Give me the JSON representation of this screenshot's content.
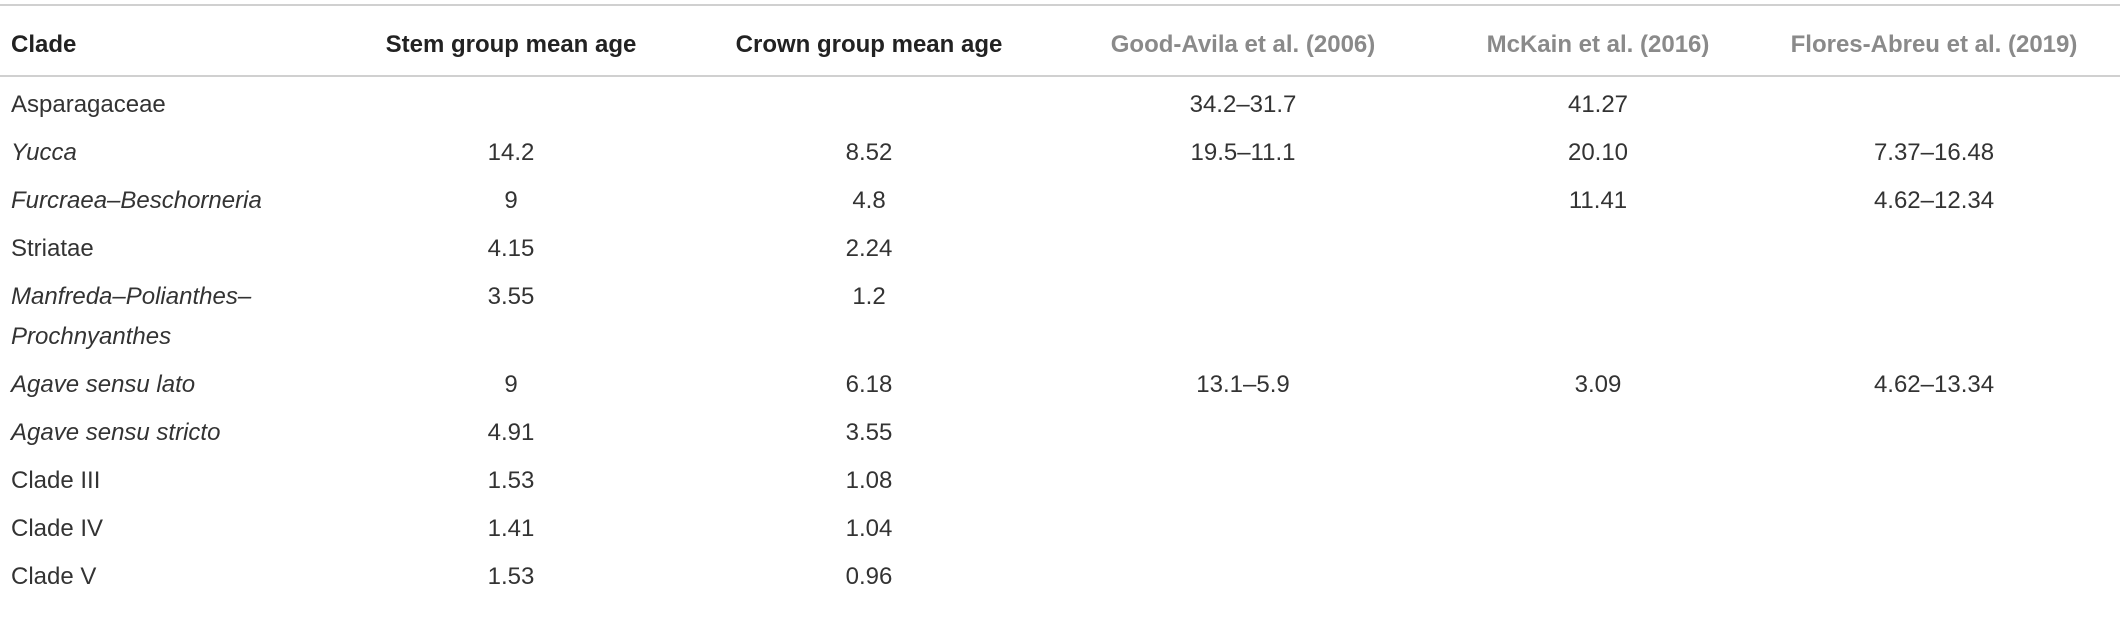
{
  "table": {
    "columns": [
      "Clade",
      "Stem group mean age",
      "Crown group mean age",
      "Good-Avila et al. (2006)",
      "McKain et al. (2016)",
      "Flores-Abreu et al. (2019)"
    ],
    "rows": [
      {
        "cells": [
          "Asparagaceae",
          null,
          null,
          "34.2–31.7",
          "41.27",
          null
        ],
        "italic": false
      },
      {
        "cells": [
          "Yucca",
          "14.2",
          "8.52",
          "19.5–11.1",
          "20.10",
          "7.37–16.48"
        ],
        "italic": true
      },
      {
        "cells": [
          "Furcraea–Beschorneria",
          "9",
          "4.8",
          null,
          "11.41",
          "4.62–12.34"
        ],
        "italic": true
      },
      {
        "cells": [
          "Striatae",
          "4.15",
          "2.24",
          null,
          null,
          null
        ],
        "italic": false
      },
      {
        "cells": [
          "Manfreda–Polianthes–Prochnyanthes",
          "3.55",
          "1.2",
          null,
          null,
          null
        ],
        "italic": true
      },
      {
        "cells": [
          "Agave sensu lato",
          "9",
          "6.18",
          "13.1–5.9",
          "3.09",
          "4.62–13.34"
        ],
        "italic": true
      },
      {
        "cells": [
          "Agave sensu stricto",
          "4.91",
          "3.55",
          null,
          null,
          null
        ],
        "italic": true
      },
      {
        "cells": [
          "Clade III",
          "1.53",
          "1.08",
          null,
          null,
          null
        ],
        "italic": false
      },
      {
        "cells": [
          "Clade IV",
          "1.41",
          "1.04",
          null,
          null,
          null
        ],
        "italic": false
      },
      {
        "cells": [
          "Clade V",
          "1.53",
          "0.96",
          null,
          null,
          null
        ],
        "italic": false
      }
    ]
  }
}
